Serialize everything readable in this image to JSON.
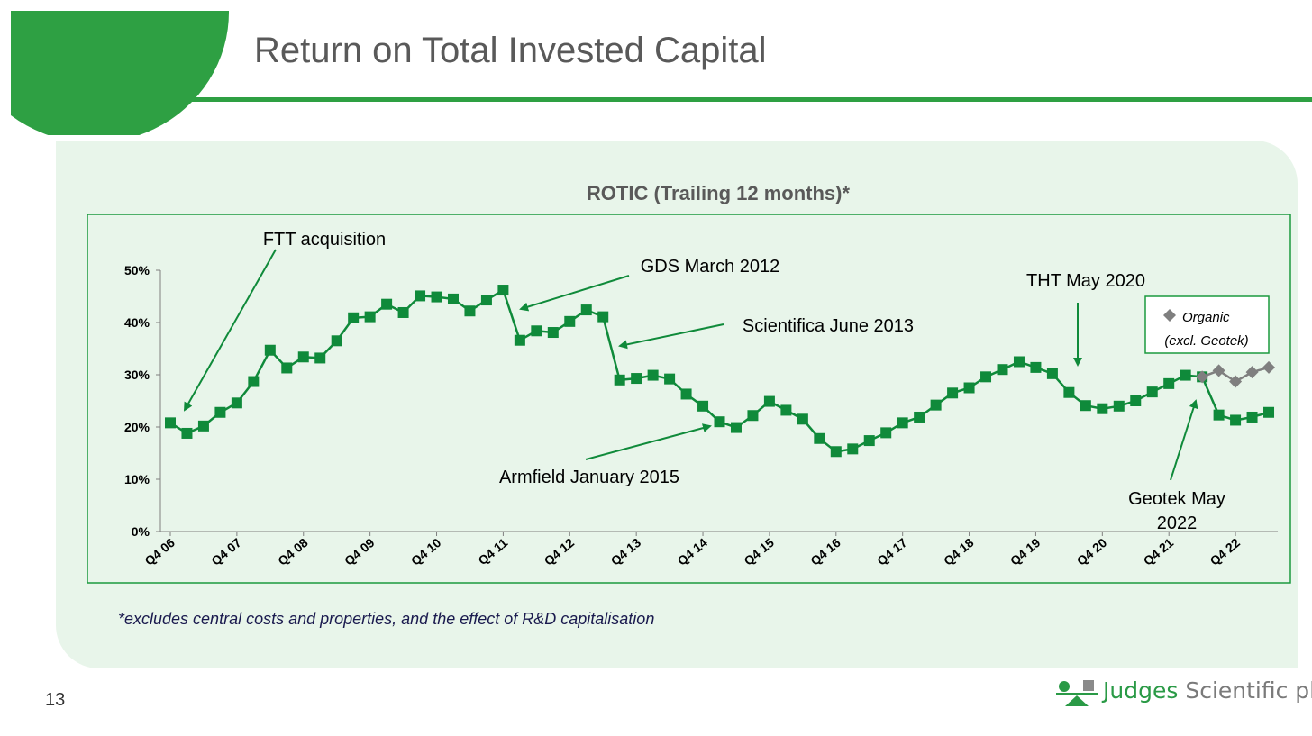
{
  "slide": {
    "title": "Return on Total Invested Capital",
    "page_number": "13",
    "footnote": "*excludes central costs and properties, and the effect of R&D capitalisation",
    "logo": {
      "word1": "Judges",
      "word2": "Scientific plc"
    }
  },
  "colors": {
    "brand_green": "#0f8a3a",
    "organic_gray": "#7f7f7f",
    "panel_bg": "#e8f5ea"
  },
  "chart_data": {
    "type": "line",
    "title": "ROTIC (Trailing 12 months)*",
    "xlabel": "",
    "ylabel": "",
    "ylim": [
      0,
      50
    ],
    "yticks": [
      "0%",
      "10%",
      "20%",
      "30%",
      "40%",
      "50%"
    ],
    "grid": false,
    "x_tick_labels": [
      "Q4 06",
      "Q4 07",
      "Q4 08",
      "Q4 09",
      "Q4 10",
      "Q4 11",
      "Q4 12",
      "Q4 13",
      "Q4 14",
      "Q4 15",
      "Q4 16",
      "Q4 17",
      "Q4 18",
      "Q4 19",
      "Q4 20",
      "Q4 21",
      "Q4 22"
    ],
    "series": [
      {
        "name": "",
        "start": "Q4 06",
        "values": [
          20.8,
          18.8,
          20.2,
          22.8,
          24.6,
          28.7,
          34.7,
          31.3,
          33.4,
          33.2,
          36.5,
          40.9,
          41.1,
          43.5,
          41.9,
          45.1,
          44.9,
          44.5,
          42.2,
          44.3,
          46.2,
          36.6,
          38.4,
          38.1,
          40.2,
          42.4,
          41.1,
          29.0,
          29.3,
          29.9,
          29.2,
          26.3,
          24.0,
          21.0,
          19.9,
          22.2,
          24.9,
          23.2,
          21.5,
          17.8,
          15.3,
          15.8,
          17.4,
          18.9,
          20.8,
          21.9,
          24.2,
          26.5,
          27.5,
          29.6,
          31.0,
          32.5,
          31.4,
          30.2,
          26.6,
          24.1,
          23.5,
          24.0,
          25.0,
          26.7,
          28.3,
          29.9,
          29.6,
          22.3,
          21.3,
          21.9,
          22.8
        ]
      },
      {
        "name": "Organic (excl. Geotek)",
        "start": "Q2 22",
        "values": [
          29.6,
          30.8,
          28.7,
          30.5,
          31.4
        ]
      }
    ],
    "legend": {
      "placement": "top-right",
      "line1": "Organic",
      "line2": "(excl. Geotek)"
    },
    "annotations": [
      {
        "text": "FTT acquisition"
      },
      {
        "text": "GDS March 2012"
      },
      {
        "text": "Scientifica June 2013"
      },
      {
        "text": "Armfield January 2015"
      },
      {
        "text": "THT May 2020"
      },
      {
        "text": "Geotek May",
        "text2": "2022"
      }
    ]
  }
}
